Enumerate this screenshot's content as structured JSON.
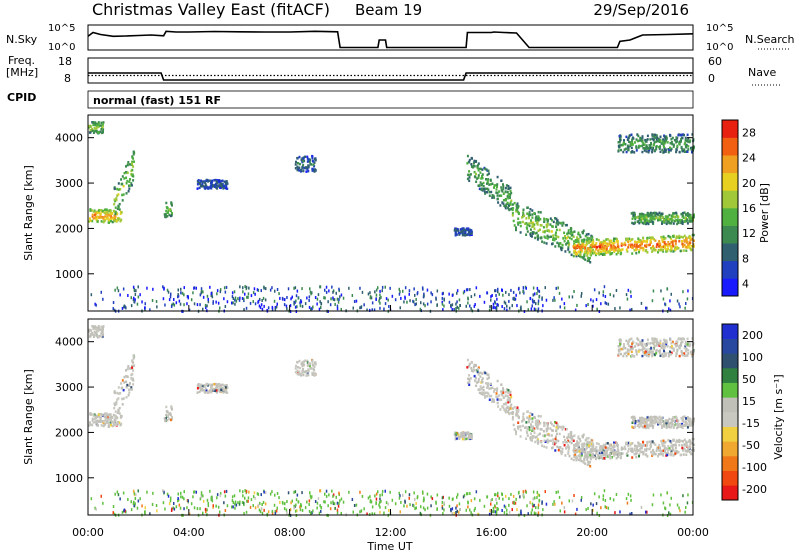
{
  "header": {
    "station": "Christmas Valley East (fitACF)",
    "beam": "Beam 19",
    "date": "29/Sep/2016"
  },
  "colors": {
    "power": [
      "#1a1aff",
      "#2040c0",
      "#306070",
      "#3c8a50",
      "#50b040",
      "#a0c838",
      "#e8d020",
      "#f0a020",
      "#f06010",
      "#e82010"
    ],
    "velocity": [
      "#e81818",
      "#f04810",
      "#f07818",
      "#f0a830",
      "#f0d040",
      "#c8c8c0",
      "#c0c0b8",
      "#60c040",
      "#308040",
      "#305070",
      "#2848a0",
      "#2030d0"
    ]
  },
  "chart_data": [
    {
      "type": "line",
      "name": "nsky-nsearch",
      "left_label": "N.Sky",
      "right_label": "N.Search",
      "left_ticks": [
        "10^5",
        "10^0"
      ],
      "right_ticks": [
        "10^5",
        "10^0"
      ],
      "series": [
        {
          "name": "N.Sky",
          "x": [
            0,
            0.2,
            0.5,
            1.0,
            1.5,
            2.0,
            2.5,
            3.0,
            3.1,
            3.5,
            4,
            5,
            6,
            7,
            8,
            9,
            9.9,
            10,
            11,
            11.5,
            11.55,
            11.8,
            11.85,
            12,
            13,
            14,
            15,
            15.05,
            16,
            16.1,
            16.5,
            17,
            17.5,
            18,
            19,
            20,
            20.5,
            21,
            21.1,
            21.5,
            22,
            23,
            24
          ],
          "y": [
            0.55,
            0.7,
            0.62,
            0.55,
            0.56,
            0.58,
            0.6,
            0.57,
            0.75,
            0.72,
            0.72,
            0.74,
            0.73,
            0.72,
            0.72,
            0.75,
            0.73,
            0.1,
            0.1,
            0.1,
            0.4,
            0.4,
            0.1,
            0.1,
            0.1,
            0.1,
            0.1,
            0.7,
            0.7,
            0.72,
            0.7,
            0.68,
            0.1,
            0.1,
            0.1,
            0.1,
            0.1,
            0.1,
            0.35,
            0.4,
            0.6,
            0.62,
            0.65
          ]
        }
      ]
    },
    {
      "type": "line",
      "name": "freq-nave",
      "left_label": "Freq.",
      "left_unit": "[MHz]",
      "right_label": "Nave",
      "left_ticks": [
        "18",
        "8"
      ],
      "right_ticks": [
        "60",
        "0"
      ],
      "series": [
        {
          "name": "Freq",
          "x": [
            0,
            2.9,
            3.0,
            14.9,
            15.0,
            24
          ],
          "y": [
            12,
            12,
            9.2,
            9.2,
            12,
            12
          ]
        },
        {
          "name": "Nave",
          "x": [
            0,
            24
          ],
          "y": [
            18,
            18
          ]
        }
      ]
    },
    {
      "type": "heatmap",
      "name": "power",
      "ylabel": "Slant Range [km]",
      "colorbar_label": "Power [dB]",
      "colorbar_ticks": [
        "28",
        "24",
        "20",
        "16",
        "12",
        "8",
        "4"
      ],
      "cpid_label": "CPID",
      "mode": "normal (fast) 151 RF",
      "yticks": [
        "4000",
        "3000",
        "2000",
        "1000"
      ],
      "ylim": [
        180,
        4500
      ],
      "xlim": [
        0,
        24
      ]
    },
    {
      "type": "heatmap",
      "name": "velocity",
      "ylabel": "Slant Range [km]",
      "colorbar_label": "Velocity [m s⁻¹]",
      "colorbar_ticks": [
        "200",
        "100",
        "50",
        "15",
        "-15",
        "-50",
        "-100",
        "-200"
      ],
      "yticks": [
        "4000",
        "3000",
        "2000",
        "1000"
      ],
      "ylim": [
        180,
        4500
      ],
      "xlim": [
        0,
        24
      ],
      "xticks": [
        "00:00",
        "04:00",
        "08:00",
        "12:00",
        "16:00",
        "20:00",
        "00:00"
      ],
      "xlabel": "Time UT"
    }
  ]
}
